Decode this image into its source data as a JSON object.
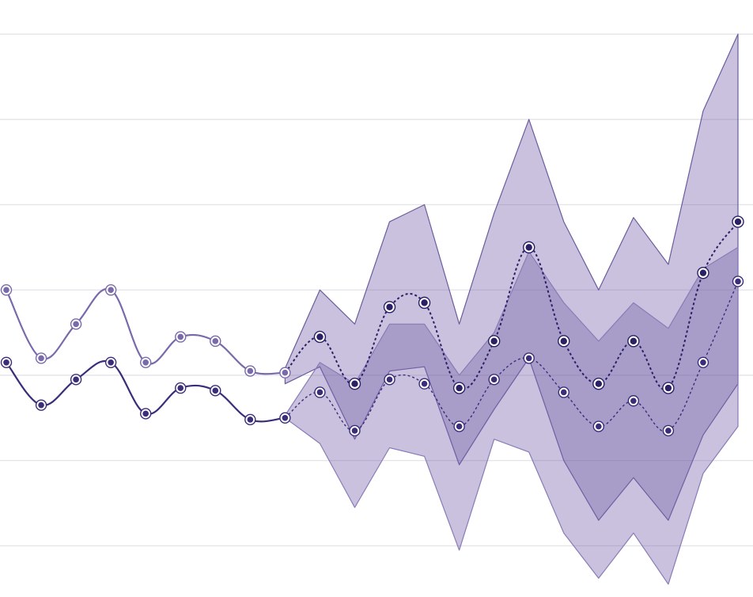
{
  "chart_data": {
    "type": "line",
    "title": "",
    "xlabel": "",
    "ylabel": "",
    "x": [
      0,
      1,
      2,
      3,
      4,
      5,
      6,
      7,
      8,
      9,
      10,
      11,
      12,
      13,
      14,
      15,
      16,
      17,
      18,
      19,
      20,
      21,
      22,
      23,
      24,
      25,
      26,
      27,
      28,
      29,
      30,
      31,
      32,
      33,
      34,
      35,
      36,
      37,
      38,
      39,
      40,
      41,
      42
    ],
    "xlim": [
      0,
      42
    ],
    "ylim": [
      -0.6,
      6.4
    ],
    "gridlines_y": [
      0,
      1,
      2,
      3,
      4,
      5,
      6
    ],
    "grid": "horizontal",
    "series": [
      {
        "kind": "history",
        "color": "#7a6aab",
        "points": [
          [
            0,
            3.0
          ],
          [
            2,
            2.2
          ],
          [
            4,
            2.6
          ],
          [
            6,
            3.0
          ],
          [
            8,
            2.15
          ],
          [
            10,
            2.45
          ],
          [
            12,
            2.4
          ],
          [
            14,
            2.05
          ],
          [
            16,
            2.03
          ]
        ]
      },
      {
        "kind": "history",
        "color": "#3b2d7a",
        "points": [
          [
            0,
            2.15
          ],
          [
            2,
            1.65
          ],
          [
            4,
            1.95
          ],
          [
            6,
            2.15
          ],
          [
            8,
            1.55
          ],
          [
            10,
            1.85
          ],
          [
            12,
            1.82
          ],
          [
            14,
            1.48
          ],
          [
            16,
            1.5
          ]
        ]
      },
      {
        "kind": "forecast",
        "color": "#2b1f66",
        "points": [
          [
            16,
            2.03
          ],
          [
            18,
            2.45
          ],
          [
            20,
            1.9
          ],
          [
            22,
            2.8
          ],
          [
            24,
            2.85
          ],
          [
            26,
            1.85
          ],
          [
            28,
            2.4
          ],
          [
            30,
            3.5
          ],
          [
            32,
            2.4
          ],
          [
            34,
            1.9
          ],
          [
            36,
            2.4
          ],
          [
            38,
            1.85
          ],
          [
            40,
            3.2
          ],
          [
            42,
            3.8
          ]
        ],
        "band_upper": [
          [
            16,
            2.08
          ],
          [
            18,
            3.0
          ],
          [
            20,
            2.6
          ],
          [
            22,
            3.8
          ],
          [
            24,
            4.0
          ],
          [
            26,
            2.6
          ],
          [
            28,
            3.9
          ],
          [
            30,
            5.0
          ],
          [
            32,
            3.8
          ],
          [
            34,
            3.0
          ],
          [
            36,
            3.85
          ],
          [
            38,
            3.3
          ],
          [
            40,
            5.1
          ],
          [
            42,
            6.0
          ]
        ],
        "band_lower": [
          [
            16,
            1.9
          ],
          [
            18,
            2.1
          ],
          [
            20,
            1.25
          ],
          [
            22,
            2.05
          ],
          [
            24,
            2.1
          ],
          [
            26,
            0.95
          ],
          [
            28,
            1.6
          ],
          [
            30,
            2.2
          ],
          [
            32,
            1.0
          ],
          [
            34,
            0.3
          ],
          [
            36,
            0.8
          ],
          [
            38,
            0.3
          ],
          [
            40,
            1.3
          ],
          [
            42,
            1.9
          ]
        ]
      },
      {
        "kind": "forecast",
        "color": "#3b2d7a",
        "points": [
          [
            16,
            1.5
          ],
          [
            18,
            1.8
          ],
          [
            20,
            1.35
          ],
          [
            22,
            1.95
          ],
          [
            24,
            1.9
          ],
          [
            26,
            1.4
          ],
          [
            28,
            1.95
          ],
          [
            30,
            2.2
          ],
          [
            32,
            1.8
          ],
          [
            34,
            1.4
          ],
          [
            36,
            1.7
          ],
          [
            38,
            1.35
          ],
          [
            40,
            2.15
          ],
          [
            42,
            3.1
          ]
        ],
        "band_upper": [
          [
            16,
            1.53
          ],
          [
            18,
            2.15
          ],
          [
            20,
            1.9
          ],
          [
            22,
            2.6
          ],
          [
            24,
            2.6
          ],
          [
            26,
            2.0
          ],
          [
            28,
            2.5
          ],
          [
            30,
            3.45
          ],
          [
            32,
            2.85
          ],
          [
            34,
            2.4
          ],
          [
            36,
            2.85
          ],
          [
            38,
            2.55
          ],
          [
            40,
            3.25
          ],
          [
            42,
            3.5
          ]
        ],
        "band_lower": [
          [
            16,
            1.5
          ],
          [
            18,
            1.2
          ],
          [
            20,
            0.45
          ],
          [
            22,
            1.15
          ],
          [
            24,
            1.05
          ],
          [
            26,
            -0.05
          ],
          [
            28,
            1.25
          ],
          [
            30,
            1.1
          ],
          [
            32,
            0.15
          ],
          [
            34,
            -0.38
          ],
          [
            36,
            0.15
          ],
          [
            38,
            -0.45
          ],
          [
            40,
            0.85
          ],
          [
            42,
            1.4
          ]
        ]
      }
    ]
  }
}
